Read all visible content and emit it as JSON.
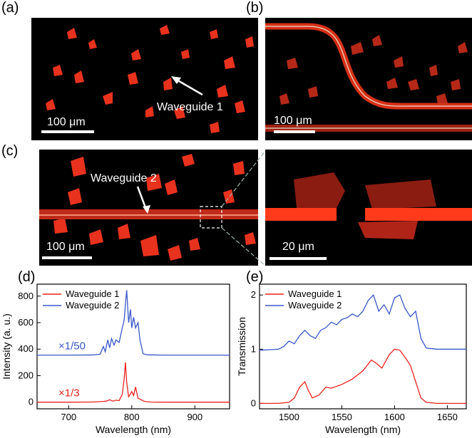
{
  "figure": {
    "labels": {
      "a": "(a)",
      "b": "(b)",
      "c": "(c)",
      "d": "(d)",
      "e": "(e)"
    },
    "scale_bars": {
      "a": "100 μm",
      "b": "100 μm",
      "c": "100 μm",
      "c_inset": "20 μm"
    },
    "annotations": {
      "a": "Waveguide 1",
      "c": "Waveguide 2"
    },
    "colors": {
      "waveguide1": "#e8231f",
      "waveguide2": "#3a57c9",
      "crystal_red": "#e8321e"
    }
  },
  "chart_data": [
    {
      "type": "line",
      "panel": "d",
      "xlabel": "Wavelength (nm)",
      "ylabel": "Intensity (a. u.)",
      "xlim": [
        650,
        955
      ],
      "ylim": [
        -50,
        890
      ],
      "xticks": [
        700,
        800,
        900
      ],
      "yticks": [
        0,
        200,
        400,
        600,
        800
      ],
      "legend_position": "top-left",
      "scale_notes": [
        {
          "text": "×1/50",
          "series": "Waveguide 2"
        },
        {
          "text": "×1/3",
          "series": "Waveguide 1"
        }
      ],
      "series": [
        {
          "name": "Waveguide 1",
          "color": "#e8231f",
          "x": [
            650,
            700,
            740,
            755,
            760,
            765,
            770,
            775,
            780,
            785,
            788,
            790,
            792,
            795,
            800,
            803,
            806,
            810,
            815,
            820,
            830,
            850,
            900,
            955
          ],
          "y": [
            0,
            0,
            1,
            6,
            8,
            18,
            8,
            15,
            12,
            60,
            180,
            300,
            150,
            40,
            80,
            50,
            115,
            30,
            18,
            6,
            1,
            0,
            0,
            0
          ]
        },
        {
          "name": "Waveguide 2",
          "color": "#3a57c9",
          "x": [
            650,
            700,
            740,
            750,
            755,
            758,
            762,
            765,
            768,
            772,
            775,
            780,
            785,
            788,
            790,
            792,
            795,
            798,
            800,
            803,
            806,
            810,
            813,
            818,
            825,
            850,
            900,
            955
          ],
          "y": [
            355,
            355,
            356,
            362,
            420,
            380,
            470,
            410,
            480,
            430,
            470,
            450,
            560,
            620,
            740,
            845,
            600,
            700,
            560,
            640,
            560,
            600,
            470,
            365,
            357,
            355,
            355,
            355
          ]
        }
      ]
    },
    {
      "type": "line",
      "panel": "e",
      "xlabel": "Wavelength (nm)",
      "ylabel": "Transmission",
      "xlim": [
        1472,
        1668
      ],
      "ylim": [
        -0.1,
        2.2
      ],
      "xticks": [
        1500,
        1550,
        1600,
        1650
      ],
      "yticks": [
        0,
        1,
        2
      ],
      "legend_position": "top-left",
      "series": [
        {
          "name": "Waveguide 1",
          "color": "#e8231f",
          "x": [
            1472,
            1490,
            1500,
            1505,
            1510,
            1515,
            1518,
            1522,
            1528,
            1535,
            1540,
            1550,
            1560,
            1570,
            1578,
            1582,
            1588,
            1595,
            1600,
            1605,
            1610,
            1615,
            1620,
            1625,
            1630,
            1640,
            1668
          ],
          "y": [
            0,
            0,
            0.02,
            0.1,
            0.3,
            0.4,
            0.25,
            0.1,
            0.15,
            0.3,
            0.28,
            0.35,
            0.45,
            0.6,
            0.8,
            0.75,
            0.65,
            0.9,
            1.0,
            0.98,
            0.85,
            0.7,
            0.4,
            0.1,
            0.02,
            0,
            0
          ]
        },
        {
          "name": "Waveguide 2",
          "color": "#3a57c9",
          "x": [
            1472,
            1490,
            1495,
            1500,
            1505,
            1510,
            1515,
            1520,
            1525,
            1530,
            1535,
            1540,
            1545,
            1550,
            1555,
            1560,
            1565,
            1570,
            1575,
            1580,
            1585,
            1590,
            1595,
            1600,
            1605,
            1610,
            1615,
            1620,
            1625,
            1630,
            1640,
            1668
          ],
          "y": [
            0.98,
            1.0,
            1.05,
            1.15,
            1.1,
            1.25,
            1.35,
            1.25,
            1.2,
            1.35,
            1.4,
            1.5,
            1.45,
            1.55,
            1.58,
            1.65,
            1.6,
            1.7,
            1.9,
            2.0,
            1.7,
            1.82,
            1.65,
            1.95,
            2.0,
            1.75,
            1.6,
            1.7,
            1.2,
            1.02,
            1.0,
            1.0
          ]
        }
      ]
    }
  ]
}
